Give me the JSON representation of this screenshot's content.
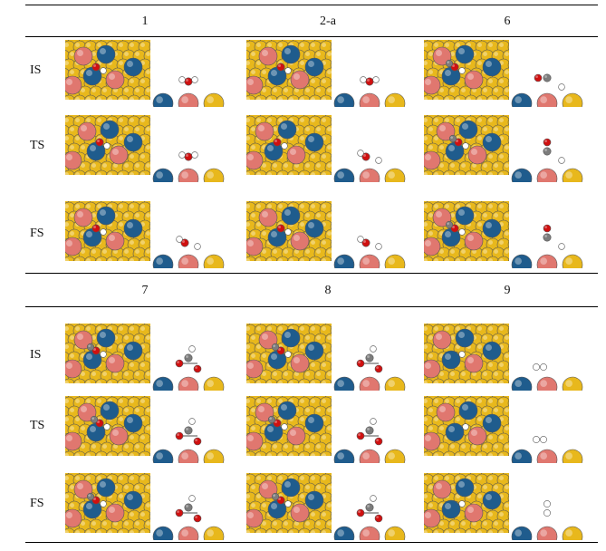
{
  "tables": [
    {
      "columns": [
        "1",
        "2-a",
        "6"
      ],
      "rows": [
        {
          "label": "IS",
          "cells": [
            {
              "adsorbate": "H2O"
            },
            {
              "adsorbate": "H2O"
            },
            {
              "adsorbate": "CO+H"
            }
          ]
        },
        {
          "label": "TS",
          "cells": [
            {
              "adsorbate": "H2O"
            },
            {
              "adsorbate": "OH+H"
            },
            {
              "adsorbate": "COH"
            }
          ]
        },
        {
          "label": "FS",
          "cells": [
            {
              "adsorbate": "OH+H"
            },
            {
              "adsorbate": "OH+H"
            },
            {
              "adsorbate": "COH"
            }
          ]
        }
      ]
    },
    {
      "columns": [
        "7",
        "8",
        "9"
      ],
      "rows": [
        {
          "label": "IS",
          "cells": [
            {
              "adsorbate": "CO2+H"
            },
            {
              "adsorbate": "HCOO"
            },
            {
              "adsorbate": "H+H"
            }
          ]
        },
        {
          "label": "TS",
          "cells": [
            {
              "adsorbate": "HCOO"
            },
            {
              "adsorbate": "HCOO"
            },
            {
              "adsorbate": "H+H"
            }
          ]
        },
        {
          "label": "FS",
          "cells": [
            {
              "adsorbate": "HCOO"
            },
            {
              "adsorbate": "CO2+H"
            },
            {
              "adsorbate": "H2"
            }
          ]
        }
      ]
    }
  ],
  "colors": {
    "au": "#e8b81c",
    "cu": "#e0776f",
    "blue": "#1f5c8d",
    "oxygen": "#d01010",
    "hydrogen": "#ffffff",
    "carbon": "#7c7c7c"
  }
}
